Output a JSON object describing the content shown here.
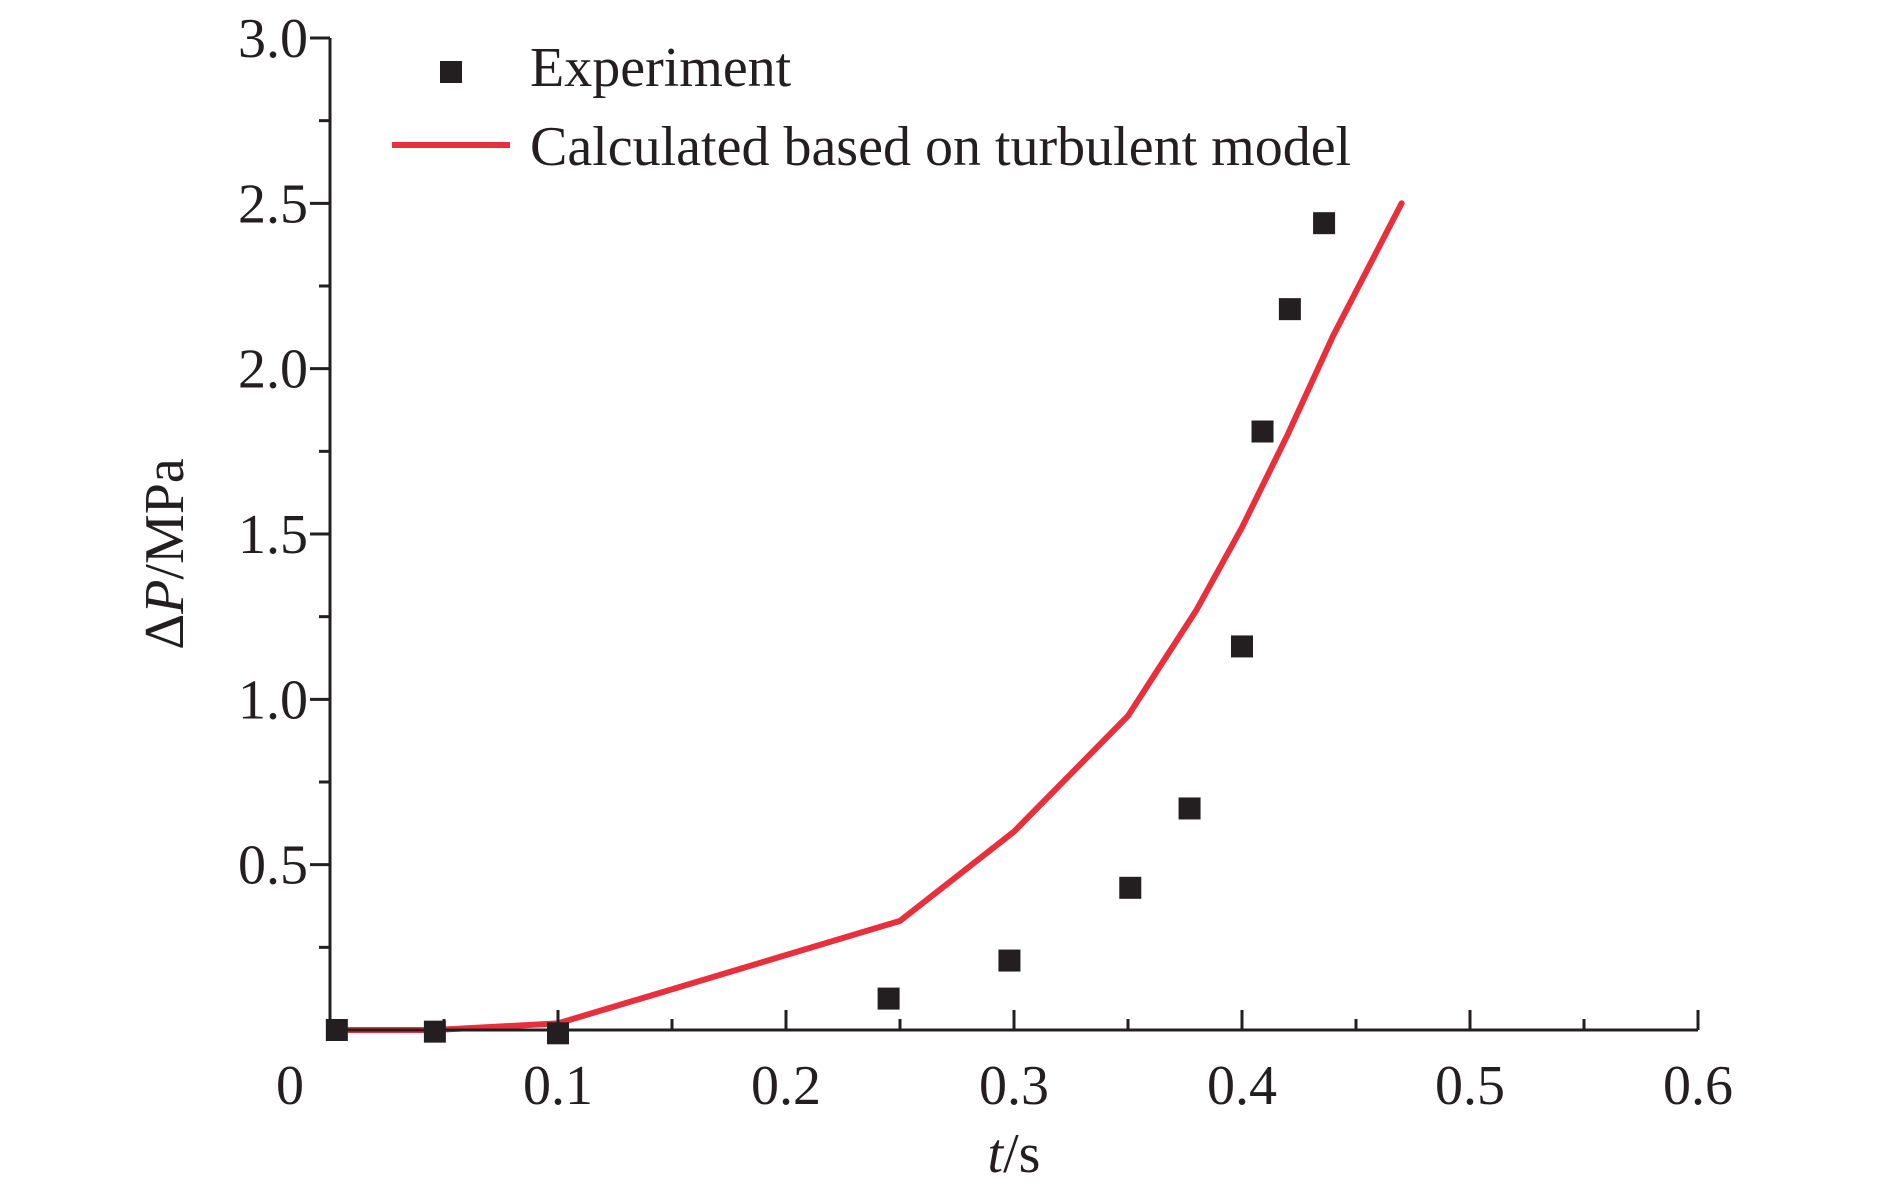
{
  "chart_data": {
    "type": "scatter",
    "xlim": [
      0,
      0.6
    ],
    "ylim": [
      0,
      3.0
    ],
    "x_ticks": [
      {
        "value": 0,
        "label": "0"
      },
      {
        "value": 0.1,
        "label": "0.1"
      },
      {
        "value": 0.2,
        "label": "0.2"
      },
      {
        "value": 0.3,
        "label": "0.3"
      },
      {
        "value": 0.4,
        "label": "0.4"
      },
      {
        "value": 0.5,
        "label": "0.5"
      },
      {
        "value": 0.6,
        "label": "0.6"
      }
    ],
    "y_ticks": [
      {
        "value": 0.5,
        "label": "0.5"
      },
      {
        "value": 1.0,
        "label": "1.0"
      },
      {
        "value": 1.5,
        "label": "1.5"
      },
      {
        "value": 2.0,
        "label": "2.0"
      },
      {
        "value": 2.5,
        "label": "2.5"
      },
      {
        "value": 3.0,
        "label": "3.0"
      }
    ],
    "x_minor_ticks": [
      0.05,
      0.15,
      0.25,
      0.35,
      0.45,
      0.55
    ],
    "y_minor_ticks": [
      0.25,
      0.75,
      1.25,
      1.75,
      2.25,
      2.75
    ],
    "xlabel": {
      "italic": "t",
      "rest": "/s"
    },
    "ylabel": {
      "prefix": "Δ",
      "italic": "P",
      "rest": "/MPa"
    },
    "legend_placement": "top-left",
    "series": [
      {
        "name": "Experiment",
        "kind": "scatter",
        "marker": "square",
        "color": "#231f20",
        "x": [
          0.003,
          0.046,
          0.1,
          0.245,
          0.298,
          0.351,
          0.377,
          0.4,
          0.409,
          0.421,
          0.436
        ],
        "y": [
          0.0,
          -0.005,
          -0.01,
          0.095,
          0.21,
          0.43,
          0.67,
          1.16,
          1.81,
          2.18,
          2.44
        ]
      },
      {
        "name": "Calculated based on turbulent model",
        "kind": "line",
        "color": "#e8303c",
        "x": [
          0.003,
          0.046,
          0.1,
          0.25,
          0.3,
          0.35,
          0.38,
          0.4,
          0.42,
          0.44,
          0.47
        ],
        "y": [
          0.0,
          0.0,
          0.02,
          0.33,
          0.6,
          0.95,
          1.27,
          1.52,
          1.8,
          2.1,
          2.5
        ]
      }
    ]
  }
}
